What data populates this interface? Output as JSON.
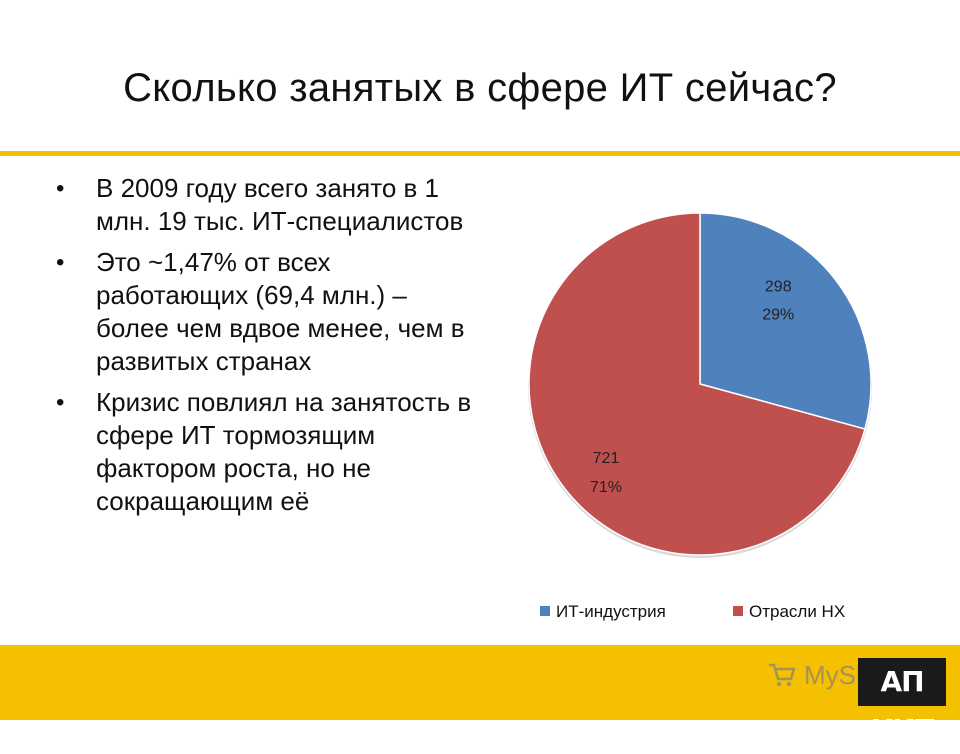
{
  "slide": {
    "title": "Сколько занятых в сфере ИТ сейчас?",
    "bullets": [
      "В 2009 году всего занято в 1 млн. 19 тыс. ИТ-специалистов",
      "Это ~1,47% от всех работающих (69,4 млн.) – более чем вдвое менее, чем в развитых странах",
      "Кризис повлиял на занятость в сфере ИТ тормозящим фактором роста, но не сокращающим её"
    ],
    "bullet_symbol": "•"
  },
  "chart_data": {
    "type": "pie",
    "categories": [
      "ИТ-индустрия",
      "Отрасли НХ"
    ],
    "values": [
      298,
      721
    ],
    "percent_labels": [
      "29%",
      "71%"
    ],
    "value_labels": [
      "298",
      "721"
    ],
    "colors": [
      "#4f81bd",
      "#c0504d"
    ],
    "start_angle": "12 o'clock",
    "direction": "clockwise",
    "legend_position": "bottom"
  },
  "watermark": {
    "text": "MySlide",
    "icon": "cart-icon"
  },
  "logo": {
    "text": "АП КИТ"
  },
  "theme": {
    "accent": "#f5c000"
  }
}
